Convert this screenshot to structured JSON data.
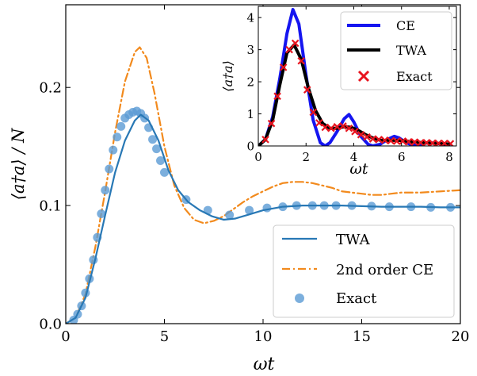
{
  "chart_data": [
    {
      "type": "line",
      "xlabel": "ωt",
      "ylabel": "⟨a†a⟩ / N",
      "xlim": [
        0,
        20
      ],
      "ylim": [
        0,
        0.27
      ],
      "xticks": [
        0,
        5,
        10,
        15,
        20
      ],
      "xtick_labels": [
        "0",
        "5",
        "10",
        "15",
        "20"
      ],
      "yticks": [
        0.0,
        0.1,
        0.2
      ],
      "ytick_labels": [
        "0.0",
        "0.1",
        "0.2"
      ],
      "legend_position": "lower-right",
      "grid": false,
      "series": [
        {
          "name": "TWA",
          "style": "solid",
          "color": "#2878b5",
          "x": [
            0,
            0.5,
            1,
            1.5,
            2,
            2.5,
            3,
            3.5,
            3.8,
            4.2,
            4.7,
            5.2,
            5.7,
            6.2,
            6.8,
            7.4,
            8,
            8.6,
            9.2,
            10,
            11,
            12,
            13,
            14,
            15,
            16,
            17,
            18,
            19,
            20
          ],
          "y": [
            0,
            0.005,
            0.022,
            0.055,
            0.092,
            0.128,
            0.155,
            0.172,
            0.177,
            0.172,
            0.155,
            0.13,
            0.113,
            0.103,
            0.096,
            0.091,
            0.088,
            0.089,
            0.092,
            0.096,
            0.099,
            0.1,
            0.1,
            0.1,
            0.0995,
            0.099,
            0.099,
            0.099,
            0.0985,
            0.0985
          ]
        },
        {
          "name": "2nd order CE",
          "style": "dashdot",
          "color": "#f28a1d",
          "x": [
            0,
            0.5,
            1,
            1.5,
            2,
            2.5,
            3,
            3.5,
            3.75,
            4.1,
            4.5,
            5,
            5.5,
            6,
            6.5,
            7,
            7.5,
            8,
            8.5,
            9,
            9.5,
            10,
            10.5,
            11,
            11.5,
            12,
            12.5,
            13,
            13.5,
            14,
            14.5,
            15,
            15.5,
            16,
            16.5,
            17,
            18,
            19,
            20
          ],
          "y": [
            0,
            0.005,
            0.025,
            0.065,
            0.112,
            0.162,
            0.205,
            0.23,
            0.234,
            0.225,
            0.195,
            0.15,
            0.117,
            0.098,
            0.088,
            0.085,
            0.087,
            0.091,
            0.097,
            0.103,
            0.108,
            0.112,
            0.116,
            0.119,
            0.12,
            0.12,
            0.119,
            0.117,
            0.115,
            0.112,
            0.111,
            0.11,
            0.109,
            0.109,
            0.11,
            0.111,
            0.111,
            0.112,
            0.113
          ]
        },
        {
          "name": "Exact",
          "style": "markers",
          "color": "#5b9bd5",
          "x": [
            0.4,
            0.6,
            0.8,
            1.0,
            1.2,
            1.4,
            1.6,
            1.8,
            2.0,
            2.2,
            2.4,
            2.6,
            2.8,
            3.0,
            3.2,
            3.4,
            3.6,
            3.8,
            4.0,
            4.2,
            4.4,
            4.6,
            4.8,
            5.0,
            6.1,
            7.2,
            8.3,
            9.3,
            10.2,
            11.0,
            11.7,
            12.5,
            13.1,
            13.7,
            14.5,
            15.5,
            16.4,
            17.5,
            18.5,
            19.5
          ],
          "y": [
            0.003,
            0.008,
            0.015,
            0.026,
            0.038,
            0.054,
            0.073,
            0.093,
            0.113,
            0.131,
            0.147,
            0.158,
            0.167,
            0.174,
            0.177,
            0.179,
            0.18,
            0.178,
            0.174,
            0.166,
            0.156,
            0.148,
            0.138,
            0.128,
            0.105,
            0.096,
            0.092,
            0.096,
            0.098,
            0.099,
            0.1,
            0.1,
            0.1,
            0.1,
            0.1,
            0.0995,
            0.099,
            0.099,
            0.0985,
            0.0985
          ]
        }
      ]
    },
    {
      "type": "line",
      "xlabel": "ωt",
      "ylabel": "⟨a†a⟩",
      "xlim": [
        0,
        8.3
      ],
      "ylim": [
        0,
        4.35
      ],
      "xticks": [
        0,
        2,
        4,
        6,
        8
      ],
      "xtick_labels": [
        "0",
        "2",
        "4",
        "6",
        "8"
      ],
      "yticks": [
        0,
        1,
        2,
        3,
        4
      ],
      "ytick_labels": [
        "0",
        "1",
        "2",
        "3",
        "4"
      ],
      "legend_position": "top-right",
      "grid": false,
      "series": [
        {
          "name": "CE",
          "style": "solid",
          "color": "#1515f0",
          "x": [
            0,
            0.3,
            0.6,
            0.9,
            1.2,
            1.45,
            1.7,
            2.0,
            2.3,
            2.6,
            2.8,
            3.0,
            3.3,
            3.6,
            3.8,
            4.0,
            4.3,
            4.6,
            4.8,
            5.1,
            5.4,
            5.7,
            5.9,
            6.2,
            6.5,
            6.8,
            7.1,
            7.5,
            8.0
          ],
          "y": [
            0,
            0.2,
            0.9,
            2.1,
            3.5,
            4.25,
            3.8,
            2.2,
            0.8,
            0.1,
            0.0,
            0.1,
            0.45,
            0.85,
            0.98,
            0.75,
            0.3,
            0.05,
            0.0,
            0.05,
            0.2,
            0.3,
            0.25,
            0.1,
            0.02,
            0.05,
            0.1,
            0.08,
            0.05
          ]
        },
        {
          "name": "TWA",
          "style": "solid",
          "color": "#000000",
          "x": [
            0,
            0.3,
            0.6,
            0.9,
            1.2,
            1.5,
            1.8,
            2.1,
            2.4,
            2.7,
            3.0,
            3.3,
            3.6,
            3.9,
            4.2,
            4.5,
            4.8,
            5.1,
            5.4,
            5.7,
            6.0,
            6.5,
            7.0,
            7.5,
            8.0
          ],
          "y": [
            0,
            0.2,
            0.8,
            1.9,
            2.9,
            3.15,
            2.7,
            1.8,
            1.1,
            0.7,
            0.55,
            0.55,
            0.6,
            0.58,
            0.48,
            0.35,
            0.25,
            0.18,
            0.17,
            0.18,
            0.17,
            0.12,
            0.1,
            0.08,
            0.06
          ]
        },
        {
          "name": "Exact",
          "style": "x-markers",
          "color": "#e8141e",
          "x": [
            0.3,
            0.55,
            0.8,
            1.05,
            1.3,
            1.55,
            1.8,
            2.05,
            2.3,
            2.55,
            2.8,
            3.05,
            3.3,
            3.55,
            3.8,
            4.05,
            4.3,
            4.55,
            4.8,
            5.05,
            5.3,
            5.55,
            5.8,
            6.05,
            6.3,
            6.55,
            6.8,
            7.05,
            7.3,
            7.55,
            7.8,
            8.05
          ],
          "y": [
            0.2,
            0.7,
            1.55,
            2.45,
            3.0,
            3.2,
            2.65,
            1.75,
            1.05,
            0.72,
            0.58,
            0.55,
            0.6,
            0.62,
            0.55,
            0.45,
            0.35,
            0.28,
            0.22,
            0.2,
            0.18,
            0.16,
            0.15,
            0.15,
            0.13,
            0.12,
            0.1,
            0.1,
            0.09,
            0.08,
            0.08,
            0.07
          ]
        }
      ]
    }
  ]
}
